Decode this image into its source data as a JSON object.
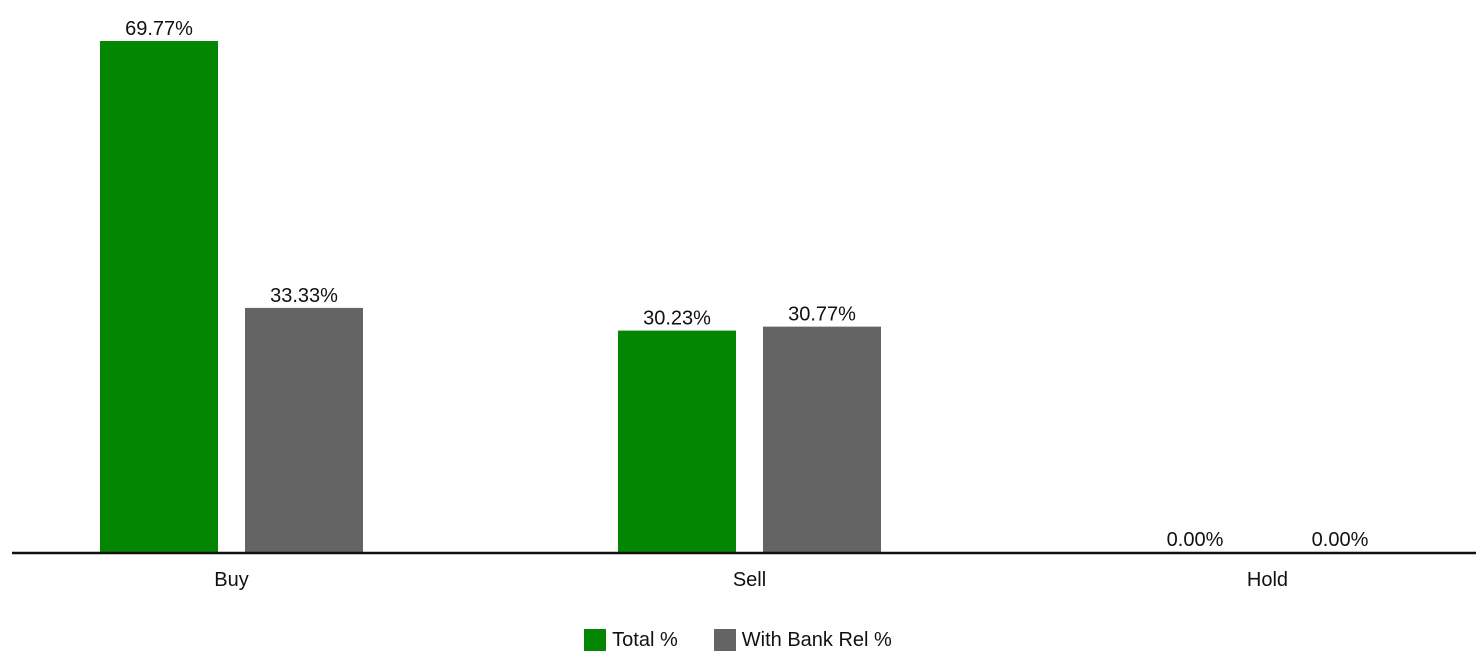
{
  "chart_data": {
    "type": "bar",
    "categories": [
      "Buy",
      "Sell",
      "Hold"
    ],
    "series": [
      {
        "name": "Total %",
        "values": [
          69.77,
          30.23,
          0.0
        ],
        "labels": [
          "69.77%",
          "30.23%",
          "0.00%"
        ],
        "color": "#038703"
      },
      {
        "name": "With Bank Rel %",
        "values": [
          33.33,
          30.77,
          0.0
        ],
        "labels": [
          "33.33%",
          "30.77%",
          "0.00%"
        ],
        "color": "#646464"
      }
    ],
    "title": "",
    "xlabel": "",
    "ylabel": "",
    "ylim": [
      0,
      69.77
    ],
    "grid": false,
    "legend_position": "bottom"
  }
}
